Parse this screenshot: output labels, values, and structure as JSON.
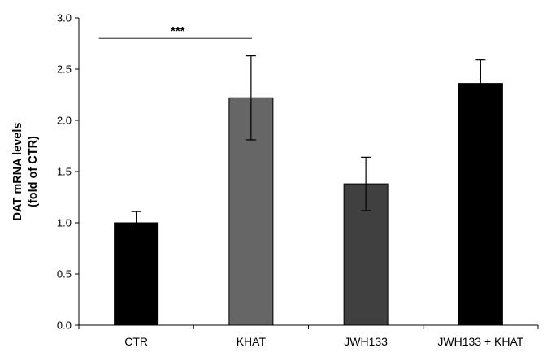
{
  "chart_data": {
    "type": "bar",
    "categories": [
      "CTR",
      "KHAT",
      "JWH133",
      "JWH133 + KHAT"
    ],
    "values": [
      1.0,
      2.22,
      1.38,
      2.36
    ],
    "errors": [
      0.11,
      0.41,
      0.26,
      0.23
    ],
    "bar_colors": [
      "#000000",
      "#666666",
      "#404040",
      "#000000"
    ],
    "ylabel": [
      "DAT mRNA levels",
      "(fold of CTR)"
    ],
    "ylim": [
      0,
      3.0
    ],
    "yticks": [
      "0.0",
      "0.5",
      "1.0",
      "1.5",
      "2.0",
      "2.5",
      "3.0"
    ],
    "grid": false,
    "annotations": [
      {
        "text": "***",
        "from_category": 0,
        "to_category": 1,
        "y": 2.8
      }
    ]
  }
}
